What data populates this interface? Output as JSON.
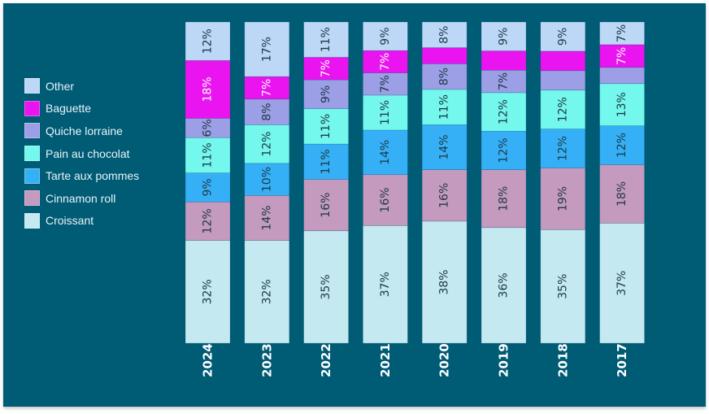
{
  "chart_data": {
    "type": "bar",
    "stacked": true,
    "normalized": true,
    "categories": [
      "2024",
      "2023",
      "2022",
      "2021",
      "2020",
      "2019",
      "2018",
      "2017"
    ],
    "series": [
      {
        "name": "Croissant",
        "color": "#C5E9F0",
        "values": [
          32,
          32,
          35,
          37,
          38,
          36,
          35,
          37
        ],
        "labels": [
          "32%",
          "32%",
          "35%",
          "37%",
          "38%",
          "36%",
          "35%",
          "37%"
        ]
      },
      {
        "name": "Cinnamon roll",
        "color": "#C49ABF",
        "values": [
          12,
          14,
          16,
          16,
          16,
          18,
          19,
          18
        ],
        "labels": [
          "12%",
          "14%",
          "16%",
          "16%",
          "16%",
          "18%",
          "19%",
          "18%"
        ]
      },
      {
        "name": "Tarte aux pommes",
        "color": "#35B0F7",
        "values": [
          9,
          10,
          11,
          14,
          14,
          12,
          12,
          12
        ],
        "labels": [
          "9%",
          "10%",
          "11%",
          "14%",
          "14%",
          "12%",
          "12%",
          "12%"
        ]
      },
      {
        "name": "Pain au chocolat",
        "color": "#74F7EC",
        "values": [
          11,
          12,
          11,
          11,
          11,
          12,
          12,
          13
        ],
        "labels": [
          "11%",
          "12%",
          "11%",
          "11%",
          "11%",
          "12%",
          "12%",
          "13%"
        ]
      },
      {
        "name": "Quiche lorraine",
        "color": "#9C9FE6",
        "values": [
          6,
          8,
          9,
          7,
          8,
          7,
          6,
          5
        ],
        "labels": [
          "6%",
          "8%",
          "9%",
          "7%",
          "8%",
          "7%",
          "",
          ""
        ]
      },
      {
        "name": "Baguette",
        "color": "#EA14F0",
        "values": [
          18,
          7,
          7,
          7,
          5,
          6,
          6,
          7
        ],
        "labels": [
          "18%",
          "7%",
          "7%",
          "7%",
          "",
          "",
          "",
          "7%"
        ]
      },
      {
        "name": "Other",
        "color": "#BDD7F7",
        "values": [
          12,
          17,
          11,
          9,
          8,
          9,
          9,
          7
        ],
        "labels": [
          "12%",
          "17%",
          "11%",
          "9%",
          "8%",
          "9%",
          "9%",
          "7%"
        ]
      }
    ],
    "legend_order": [
      "Other",
      "Baguette",
      "Quiche lorraine",
      "Pain au chocolat",
      "Tarte aux pommes",
      "Cinnamon roll",
      "Croissant"
    ],
    "legend_position": "left",
    "ylim": [
      0,
      100
    ],
    "grid": false,
    "title": "",
    "xlabel": "",
    "ylabel": ""
  },
  "colors": {
    "background": "#005B75",
    "label_dark": "#1E3A46",
    "label_light": "#FFFFFF",
    "axis_text": "#FFFFFF"
  }
}
